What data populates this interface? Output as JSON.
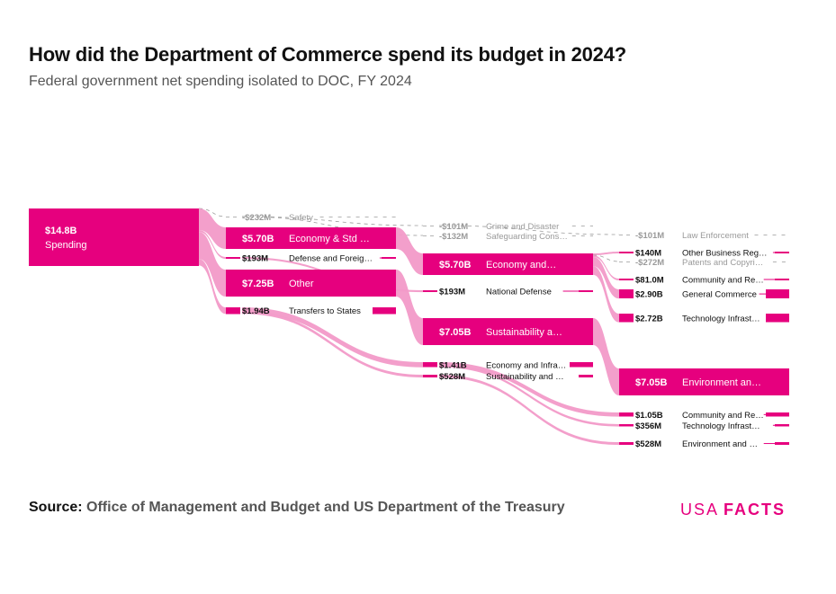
{
  "colors": {
    "primary": "#E6007E",
    "flow": "#F29AC8",
    "negative": "#9A9A9A",
    "logo_light": "#E6007E",
    "logo_bold": "#E6007E"
  },
  "title": "How did the Department of Commerce spend its budget in 2024?",
  "subtitle": "Federal government net spending isolated to DOC, FY 2024",
  "source": {
    "label": "Source:",
    "text": "Office of Management and Budget and US Department of the Treasury"
  },
  "logo": {
    "light": "USA",
    "bold": "FACTS"
  },
  "chart_data": {
    "type": "sankey",
    "nodes": [
      {
        "id": "spending",
        "level": 0,
        "value_label": "$14.8B",
        "label": "Spending",
        "value": 14800
      },
      {
        "id": "safety",
        "level": 1,
        "value_label": "-$232M",
        "label": "Safety",
        "value": -232
      },
      {
        "id": "econ1",
        "level": 1,
        "value_label": "$5.70B",
        "label": "Economy & Std …",
        "value": 5700
      },
      {
        "id": "defense1",
        "level": 1,
        "value_label": "$193M",
        "label": "Defense and Foreig…",
        "value": 193
      },
      {
        "id": "other1",
        "level": 1,
        "value_label": "$7.25B",
        "label": "Other",
        "value": 7250
      },
      {
        "id": "transfers1",
        "level": 1,
        "value_label": "$1.94B",
        "label": "Transfers to States",
        "value": 1940
      },
      {
        "id": "crime2",
        "level": 2,
        "value_label": "-$101M",
        "label": "Crime and Disaster",
        "value": -101
      },
      {
        "id": "safeg2",
        "level": 2,
        "value_label": "-$132M",
        "label": "Safeguarding Cons…",
        "value": -132
      },
      {
        "id": "econ2",
        "level": 2,
        "value_label": "$5.70B",
        "label": "Economy and…",
        "value": 5700
      },
      {
        "id": "natdef2",
        "level": 2,
        "value_label": "$193M",
        "label": "National Defense",
        "value": 193
      },
      {
        "id": "sust2",
        "level": 2,
        "value_label": "$7.05B",
        "label": "Sustainability a…",
        "value": 7050
      },
      {
        "id": "econinfra2",
        "level": 2,
        "value_label": "$1.41B",
        "label": "Economy and Infra…",
        "value": 1410
      },
      {
        "id": "sustand2",
        "level": 2,
        "value_label": "$528M",
        "label": "Sustainability and …",
        "value": 528
      },
      {
        "id": "lawenf3",
        "level": 3,
        "value_label": "-$101M",
        "label": "Law Enforcement",
        "value": -101
      },
      {
        "id": "otherbiz3",
        "level": 3,
        "value_label": "$140M",
        "label": "Other Business Reg…",
        "value": 140
      },
      {
        "id": "patents3",
        "level": 3,
        "value_label": "-$272M",
        "label": "Patents and Copyri…",
        "value": -272
      },
      {
        "id": "community3",
        "level": 3,
        "value_label": "$81.0M",
        "label": "Community and Re…",
        "value": 81
      },
      {
        "id": "gencomm3",
        "level": 3,
        "value_label": "$2.90B",
        "label": "General Commerce",
        "value": 2900
      },
      {
        "id": "techinfra3",
        "level": 3,
        "value_label": "$2.72B",
        "label": "Technology Infrast…",
        "value": 2720
      },
      {
        "id": "envan3",
        "level": 3,
        "value_label": "$7.05B",
        "label": "Environment an…",
        "value": 7050
      },
      {
        "id": "community3b",
        "level": 3,
        "value_label": "$1.05B",
        "label": "Community and Re…",
        "value": 1050
      },
      {
        "id": "techinfra3b",
        "level": 3,
        "value_label": "$356M",
        "label": "Technology Infrast…",
        "value": 356
      },
      {
        "id": "envand3",
        "level": 3,
        "value_label": "$528M",
        "label": "Environment and …",
        "value": 528
      }
    ],
    "links": [
      {
        "source": "spending",
        "target": "safety",
        "value": -232
      },
      {
        "source": "spending",
        "target": "econ1",
        "value": 5700
      },
      {
        "source": "spending",
        "target": "defense1",
        "value": 193
      },
      {
        "source": "spending",
        "target": "other1",
        "value": 7250
      },
      {
        "source": "spending",
        "target": "transfers1",
        "value": 1940
      },
      {
        "source": "safety",
        "target": "crime2",
        "value": -101
      },
      {
        "source": "safety",
        "target": "safeg2",
        "value": -132
      },
      {
        "source": "econ1",
        "target": "econ2",
        "value": 5700
      },
      {
        "source": "defense1",
        "target": "natdef2",
        "value": 193
      },
      {
        "source": "other1",
        "target": "sust2",
        "value": 7050
      },
      {
        "source": "transfers1",
        "target": "econinfra2",
        "value": 1410
      },
      {
        "source": "transfers1",
        "target": "sustand2",
        "value": 528
      },
      {
        "source": "crime2",
        "target": "lawenf3",
        "value": -101
      },
      {
        "source": "econ2",
        "target": "otherbiz3",
        "value": 140
      },
      {
        "source": "econ2",
        "target": "patents3",
        "value": -272
      },
      {
        "source": "econ2",
        "target": "community3",
        "value": 81
      },
      {
        "source": "econ2",
        "target": "gencomm3",
        "value": 2900
      },
      {
        "source": "econ2",
        "target": "techinfra3",
        "value": 2720
      },
      {
        "source": "sust2",
        "target": "envan3",
        "value": 7050
      },
      {
        "source": "econinfra2",
        "target": "community3b",
        "value": 1050
      },
      {
        "source": "econinfra2",
        "target": "techinfra3b",
        "value": 356
      },
      {
        "source": "sustand2",
        "target": "envand3",
        "value": 528
      }
    ]
  }
}
